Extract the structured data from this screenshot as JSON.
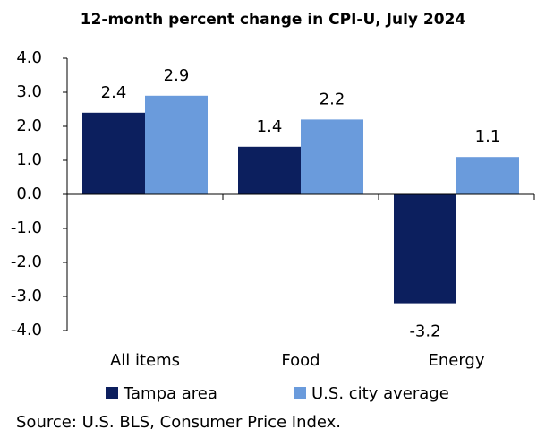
{
  "chart_data": {
    "type": "bar",
    "title": "12-month percent change in CPI-U, July 2024",
    "categories": [
      "All items",
      "Food",
      "Energy"
    ],
    "series": [
      {
        "name": "Tampa area",
        "color": "#0c1f5e",
        "values": [
          2.4,
          1.4,
          -3.2
        ]
      },
      {
        "name": "U.S. city average",
        "color": "#6a9bdc",
        "values": [
          2.9,
          2.2,
          1.1
        ]
      }
    ],
    "ylim": [
      -4,
      4
    ],
    "yticks": [
      {
        "value": -4,
        "label": "-4.0"
      },
      {
        "value": -3,
        "label": "-3.0"
      },
      {
        "value": -2,
        "label": "-2.0"
      },
      {
        "value": -1,
        "label": "-1.0"
      },
      {
        "value": 0,
        "label": "0.0"
      },
      {
        "value": 1,
        "label": "1.0"
      },
      {
        "value": 2,
        "label": "2.0"
      },
      {
        "value": 3,
        "label": "3.0"
      },
      {
        "value": 4,
        "label": "4.0"
      }
    ],
    "legend": "bottom",
    "source": "Source: U.S. BLS, Consumer Price Index."
  }
}
